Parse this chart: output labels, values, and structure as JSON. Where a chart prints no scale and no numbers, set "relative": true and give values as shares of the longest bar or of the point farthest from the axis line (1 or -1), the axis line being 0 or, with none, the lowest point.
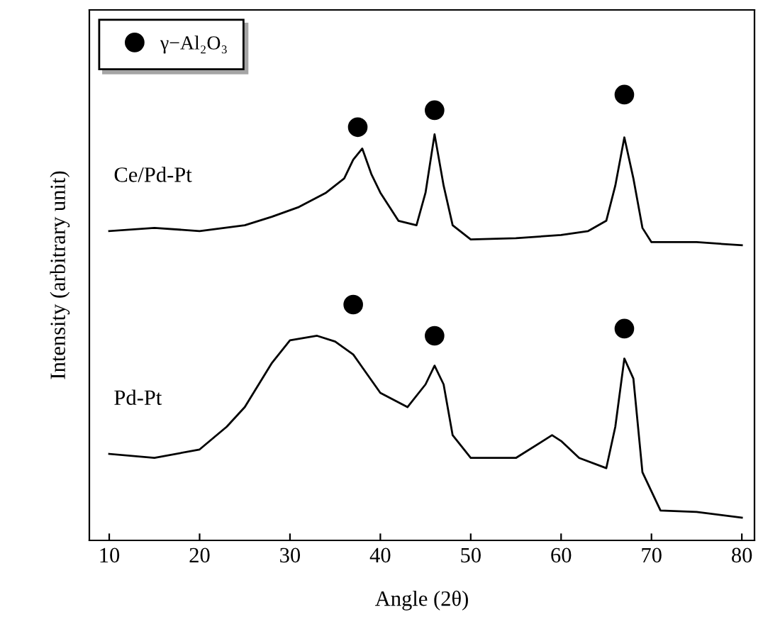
{
  "chart_data": {
    "type": "line",
    "relative": true,
    "xlabel": "Angle (2θ)",
    "ylabel": "Intensity (arbitrary unit)",
    "xlim": [
      7.8,
      81.4
    ],
    "xticks": [
      10,
      20,
      30,
      40,
      50,
      60,
      70,
      80
    ],
    "tick_labels": "x",
    "legend": "top left",
    "grid": false,
    "series": [
      {
        "name": "Ce/Pd-Pt",
        "color": "#000000",
        "x": [
          10,
          15,
          20,
          25,
          28,
          31,
          34,
          36,
          37,
          38,
          39,
          40,
          42,
          44,
          45,
          46,
          47,
          48,
          50,
          55,
          60,
          63,
          65,
          66,
          67,
          68,
          69,
          70,
          75,
          80
        ],
        "values": [
          0.694,
          0.701,
          0.694,
          0.707,
          0.726,
          0.748,
          0.78,
          0.812,
          0.854,
          0.879,
          0.822,
          0.78,
          0.717,
          0.707,
          0.78,
          0.911,
          0.796,
          0.707,
          0.675,
          0.678,
          0.685,
          0.694,
          0.717,
          0.796,
          0.904,
          0.812,
          0.701,
          0.669,
          0.669,
          0.662
        ]
      },
      {
        "name": "Pd-Pt",
        "color": "#000000",
        "x": [
          10,
          15,
          20,
          23,
          25,
          28,
          30,
          33,
          35,
          37,
          40,
          43,
          45,
          46,
          47,
          48,
          50,
          55,
          59,
          60,
          62,
          65,
          66,
          67,
          68,
          69,
          71,
          75,
          80
        ],
        "values": [
          0.194,
          0.185,
          0.204,
          0.255,
          0.299,
          0.398,
          0.449,
          0.459,
          0.446,
          0.417,
          0.331,
          0.299,
          0.35,
          0.392,
          0.35,
          0.236,
          0.185,
          0.185,
          0.236,
          0.223,
          0.185,
          0.162,
          0.255,
          0.408,
          0.363,
          0.153,
          0.067,
          0.064,
          0.051
        ]
      },
      {
        "name": "γ−Al₂O₃",
        "type": "scatter",
        "marker": "circle",
        "color": "#000000",
        "x": [
          37.5,
          46,
          67,
          37,
          46,
          67
        ],
        "values": [
          0.927,
          0.965,
          1.0,
          0.529,
          0.459,
          0.475
        ]
      }
    ]
  }
}
